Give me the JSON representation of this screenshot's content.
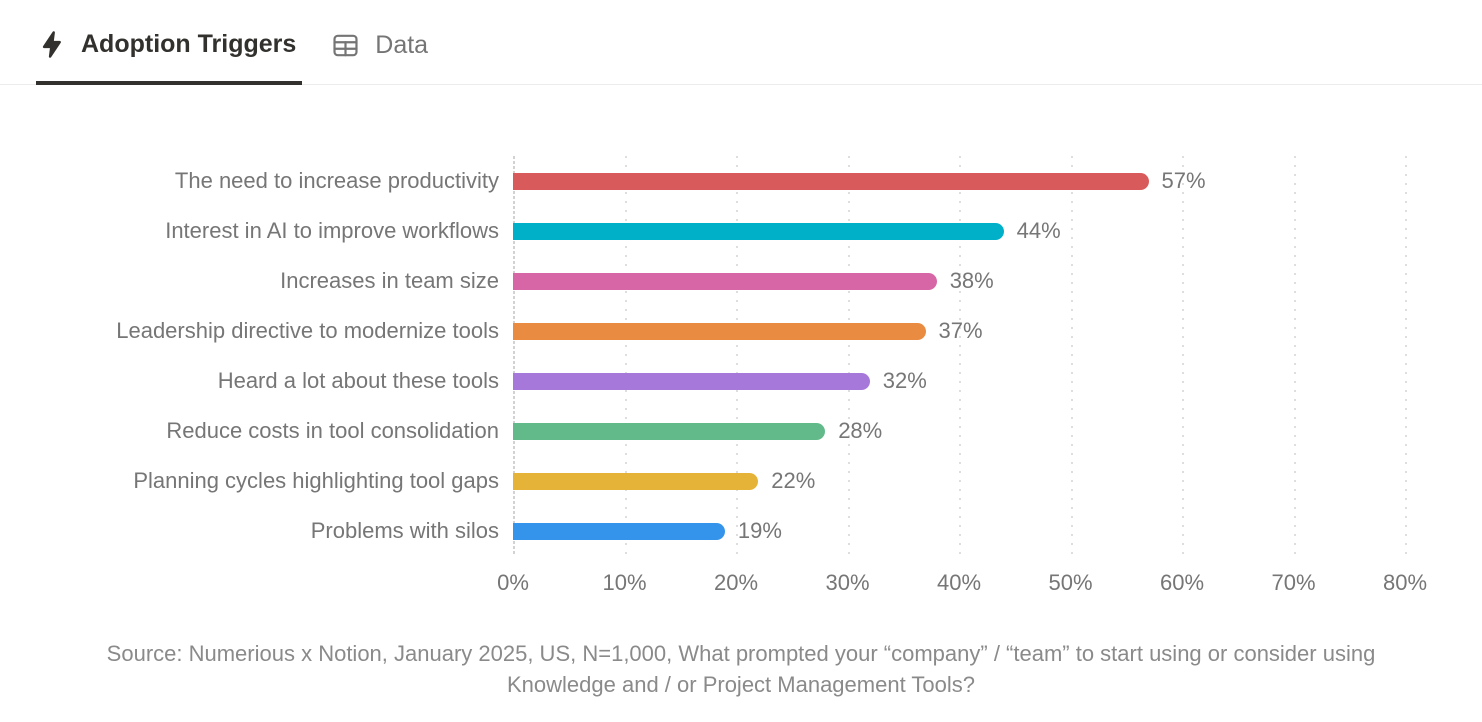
{
  "tabs": {
    "adoption_triggers": {
      "label": "Adoption Triggers",
      "icon": "lightning-bolt",
      "active": true
    },
    "data": {
      "label": "Data",
      "icon": "table",
      "active": false
    }
  },
  "chart_data": {
    "type": "bar",
    "orientation": "horizontal",
    "title": "Adoption Triggers",
    "categories": [
      "The need to increase productivity",
      "Interest in AI to improve workflows",
      "Increases in team size",
      "Leadership directive to modernize tools",
      "Heard a lot about these tools",
      "Reduce costs in tool consolidation",
      "Planning cycles highlighting tool gaps",
      "Problems with silos"
    ],
    "values": [
      57,
      44,
      38,
      37,
      32,
      28,
      22,
      19
    ],
    "value_labels": [
      "57%",
      "44%",
      "38%",
      "37%",
      "32%",
      "28%",
      "22%",
      "19%"
    ],
    "bar_colors": [
      "#d95a5a",
      "#00b0c8",
      "#d766a7",
      "#e98c42",
      "#a678da",
      "#62ba8b",
      "#e6b339",
      "#3494eb"
    ],
    "x_ticks": [
      "0%",
      "10%",
      "20%",
      "30%",
      "40%",
      "50%",
      "60%",
      "70%",
      "80%"
    ],
    "xlim": [
      0,
      80
    ],
    "xlabel": "",
    "ylabel": "",
    "grid": "vertical-dotted",
    "legend": "none"
  },
  "source": {
    "text": "Source: Numerious x Notion, January 2025, US, N=1,000, What prompted your “company” / “team” to start using or consider using Knowledge and / or Project Management Tools?"
  }
}
